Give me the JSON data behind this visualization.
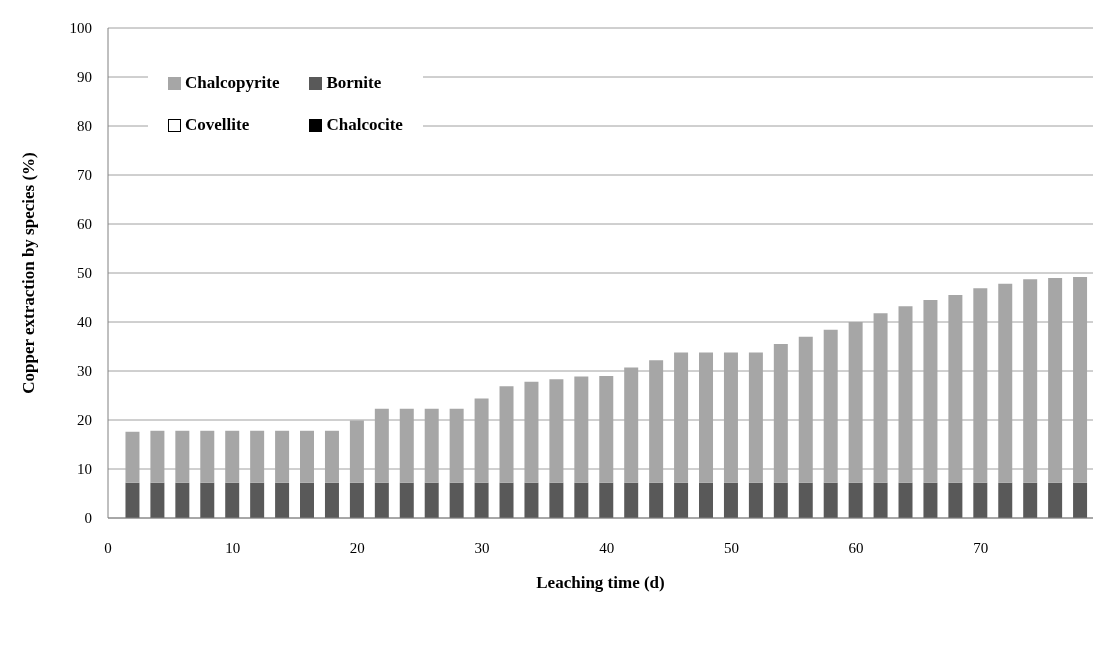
{
  "chart_data": {
    "type": "bar",
    "stacked": true,
    "xlabel": "Leaching time (d)",
    "ylabel": "Copper extraction by species (%)",
    "x": [
      2,
      4,
      6,
      8,
      10,
      12,
      14,
      16,
      18,
      20,
      22,
      24,
      26,
      28,
      30,
      32,
      34,
      36,
      38,
      40,
      42,
      44,
      46,
      48,
      50,
      52,
      54,
      56,
      58,
      60,
      62,
      64,
      66,
      68,
      70,
      72,
      74,
      76,
      78
    ],
    "xlim": [
      0,
      79
    ],
    "xticks": [
      0,
      10,
      20,
      30,
      40,
      50,
      60,
      70
    ],
    "ylim": [
      0,
      100
    ],
    "yticks": [
      0,
      10,
      20,
      30,
      40,
      50,
      60,
      70,
      80,
      90,
      100
    ],
    "grid": "y",
    "legend": "top left",
    "series": [
      {
        "name": "Chalcocite",
        "color": "#000000",
        "values": [
          0,
          0,
          0,
          0,
          0,
          0,
          0,
          0,
          0,
          0,
          0,
          0,
          0,
          0,
          0,
          0,
          0,
          0,
          0,
          0,
          0,
          0,
          0,
          0,
          0,
          0,
          0,
          0,
          0,
          0,
          0,
          0,
          0,
          0,
          0,
          0,
          0,
          0,
          0
        ]
      },
      {
        "name": "Covellite",
        "color": "#ffffff",
        "values": [
          0,
          0,
          0,
          0,
          0,
          0,
          0,
          0,
          0,
          0,
          0,
          0,
          0,
          0,
          0,
          0,
          0,
          0,
          0,
          0,
          0,
          0,
          0,
          0,
          0,
          0,
          0,
          0,
          0,
          0,
          0,
          0,
          0,
          0,
          0,
          0,
          0,
          0,
          0
        ]
      },
      {
        "name": "Bornite",
        "color": "#595959",
        "values": [
          7.2,
          7.2,
          7.2,
          7.2,
          7.2,
          7.2,
          7.2,
          7.2,
          7.2,
          7.2,
          7.2,
          7.2,
          7.2,
          7.2,
          7.2,
          7.2,
          7.2,
          7.2,
          7.2,
          7.2,
          7.2,
          7.2,
          7.2,
          7.2,
          7.2,
          7.2,
          7.2,
          7.2,
          7.2,
          7.2,
          7.2,
          7.2,
          7.2,
          7.2,
          7.2,
          7.2,
          7.2,
          7.2,
          7.2
        ]
      },
      {
        "name": "Chalcopyrite",
        "color": "#a6a6a6",
        "values": [
          10.4,
          10.6,
          10.6,
          10.6,
          10.6,
          10.6,
          10.6,
          10.6,
          10.6,
          12.7,
          15.1,
          15.1,
          15.1,
          15.1,
          17.2,
          19.7,
          20.6,
          21.1,
          21.7,
          21.8,
          23.5,
          25.0,
          26.6,
          26.6,
          26.6,
          26.6,
          28.3,
          29.8,
          31.2,
          32.8,
          34.6,
          36.0,
          37.3,
          38.3,
          39.7,
          40.6,
          41.5,
          41.8,
          42.0
        ]
      }
    ]
  }
}
